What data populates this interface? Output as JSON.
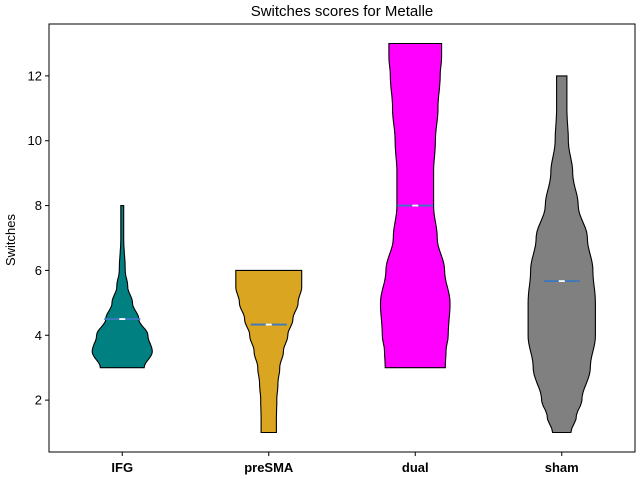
{
  "chart_data": {
    "type": "violin",
    "title": "Switches scores for Metalle",
    "xlabel": "",
    "ylabel": "Switches",
    "ylim": [
      0.4,
      13.6
    ],
    "yticks": [
      2,
      4,
      6,
      8,
      10,
      12
    ],
    "grid": false,
    "categories": [
      "IFG",
      "preSMA",
      "dual",
      "sham"
    ],
    "series": [
      {
        "category": "IFG",
        "color": "#008080",
        "min": 3,
        "max": 8,
        "mean": 4.5,
        "profile": [
          [
            3.0,
            0.6
          ],
          [
            3.5,
            0.82
          ],
          [
            4.0,
            0.7
          ],
          [
            4.5,
            0.45
          ],
          [
            5.0,
            0.28
          ],
          [
            5.5,
            0.15
          ],
          [
            6.0,
            0.08
          ],
          [
            7.0,
            0.04
          ],
          [
            8.0,
            0.04
          ]
        ]
      },
      {
        "category": "preSMA",
        "color": "#DAA520",
        "min": 1,
        "max": 6,
        "mean": 4.33,
        "profile": [
          [
            1.0,
            0.21
          ],
          [
            1.5,
            0.21
          ],
          [
            2.0,
            0.22
          ],
          [
            2.5,
            0.25
          ],
          [
            3.0,
            0.3
          ],
          [
            3.5,
            0.4
          ],
          [
            4.0,
            0.52
          ],
          [
            4.5,
            0.66
          ],
          [
            5.0,
            0.8
          ],
          [
            5.5,
            0.9
          ],
          [
            6.0,
            0.9
          ]
        ]
      },
      {
        "category": "dual",
        "color": "#FF00FF",
        "min": 3,
        "max": 13,
        "mean": 8,
        "profile": [
          [
            3.0,
            0.82
          ],
          [
            3.5,
            0.84
          ],
          [
            4.0,
            0.9
          ],
          [
            5.0,
            0.95
          ],
          [
            6.0,
            0.8
          ],
          [
            7.0,
            0.6
          ],
          [
            8.0,
            0.5
          ],
          [
            9.0,
            0.5
          ],
          [
            10.0,
            0.55
          ],
          [
            11.0,
            0.62
          ],
          [
            12.0,
            0.68
          ],
          [
            12.6,
            0.72
          ],
          [
            13.0,
            0.72
          ]
        ]
      },
      {
        "category": "sham",
        "color": "#808080",
        "min": 1,
        "max": 12,
        "mean": 5.67,
        "profile": [
          [
            1.0,
            0.25
          ],
          [
            1.5,
            0.4
          ],
          [
            2.0,
            0.55
          ],
          [
            3.0,
            0.78
          ],
          [
            4.0,
            0.92
          ],
          [
            5.0,
            0.92
          ],
          [
            6.0,
            0.85
          ],
          [
            7.0,
            0.7
          ],
          [
            8.0,
            0.45
          ],
          [
            9.0,
            0.3
          ],
          [
            10.0,
            0.18
          ],
          [
            11.0,
            0.14
          ],
          [
            12.0,
            0.14
          ]
        ]
      }
    ]
  }
}
